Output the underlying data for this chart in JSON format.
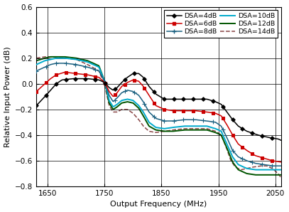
{
  "xlabel": "Output Frequency (MHz)",
  "ylabel": "Relative Input Power (dB)",
  "xlim": [
    1630,
    2060
  ],
  "ylim": [
    -0.8,
    0.6
  ],
  "xticks": [
    1650,
    1750,
    1850,
    1950,
    2050
  ],
  "yticks": [
    -0.8,
    -0.6,
    -0.4,
    -0.2,
    0.0,
    0.2,
    0.4,
    0.6
  ],
  "series": [
    {
      "label": "DSA=4dB",
      "color": "#000000",
      "lw": 1.1,
      "marker": "D",
      "ms": 2.8,
      "ls": "-",
      "zorder": 6,
      "mstep": 14
    },
    {
      "label": "DSA=6dB",
      "color": "#cc0000",
      "lw": 1.1,
      "marker": "s",
      "ms": 2.8,
      "ls": "-",
      "zorder": 5,
      "mstep": 14
    },
    {
      "label": "DSA=8dB",
      "color": "#1a6080",
      "lw": 1.1,
      "marker": "+",
      "ms": 4.0,
      "ls": "-",
      "zorder": 4,
      "mstep": 14
    },
    {
      "label": "DSA=10dB",
      "color": "#00aacc",
      "lw": 1.4,
      "marker": "",
      "ms": 0,
      "ls": "-",
      "zorder": 3,
      "mstep": 0
    },
    {
      "label": "DSA=12dB",
      "color": "#005500",
      "lw": 1.4,
      "marker": "",
      "ms": 0,
      "ls": "-",
      "zorder": 2,
      "mstep": 0
    },
    {
      "label": "DSA=14dB",
      "color": "#884444",
      "lw": 1.1,
      "marker": "",
      "ms": 0,
      "ls": "--",
      "zorder": 1,
      "mstep": 0
    }
  ],
  "background": "#ffffff",
  "spine_color": "#c8a000",
  "tick_color": "#c8a000"
}
